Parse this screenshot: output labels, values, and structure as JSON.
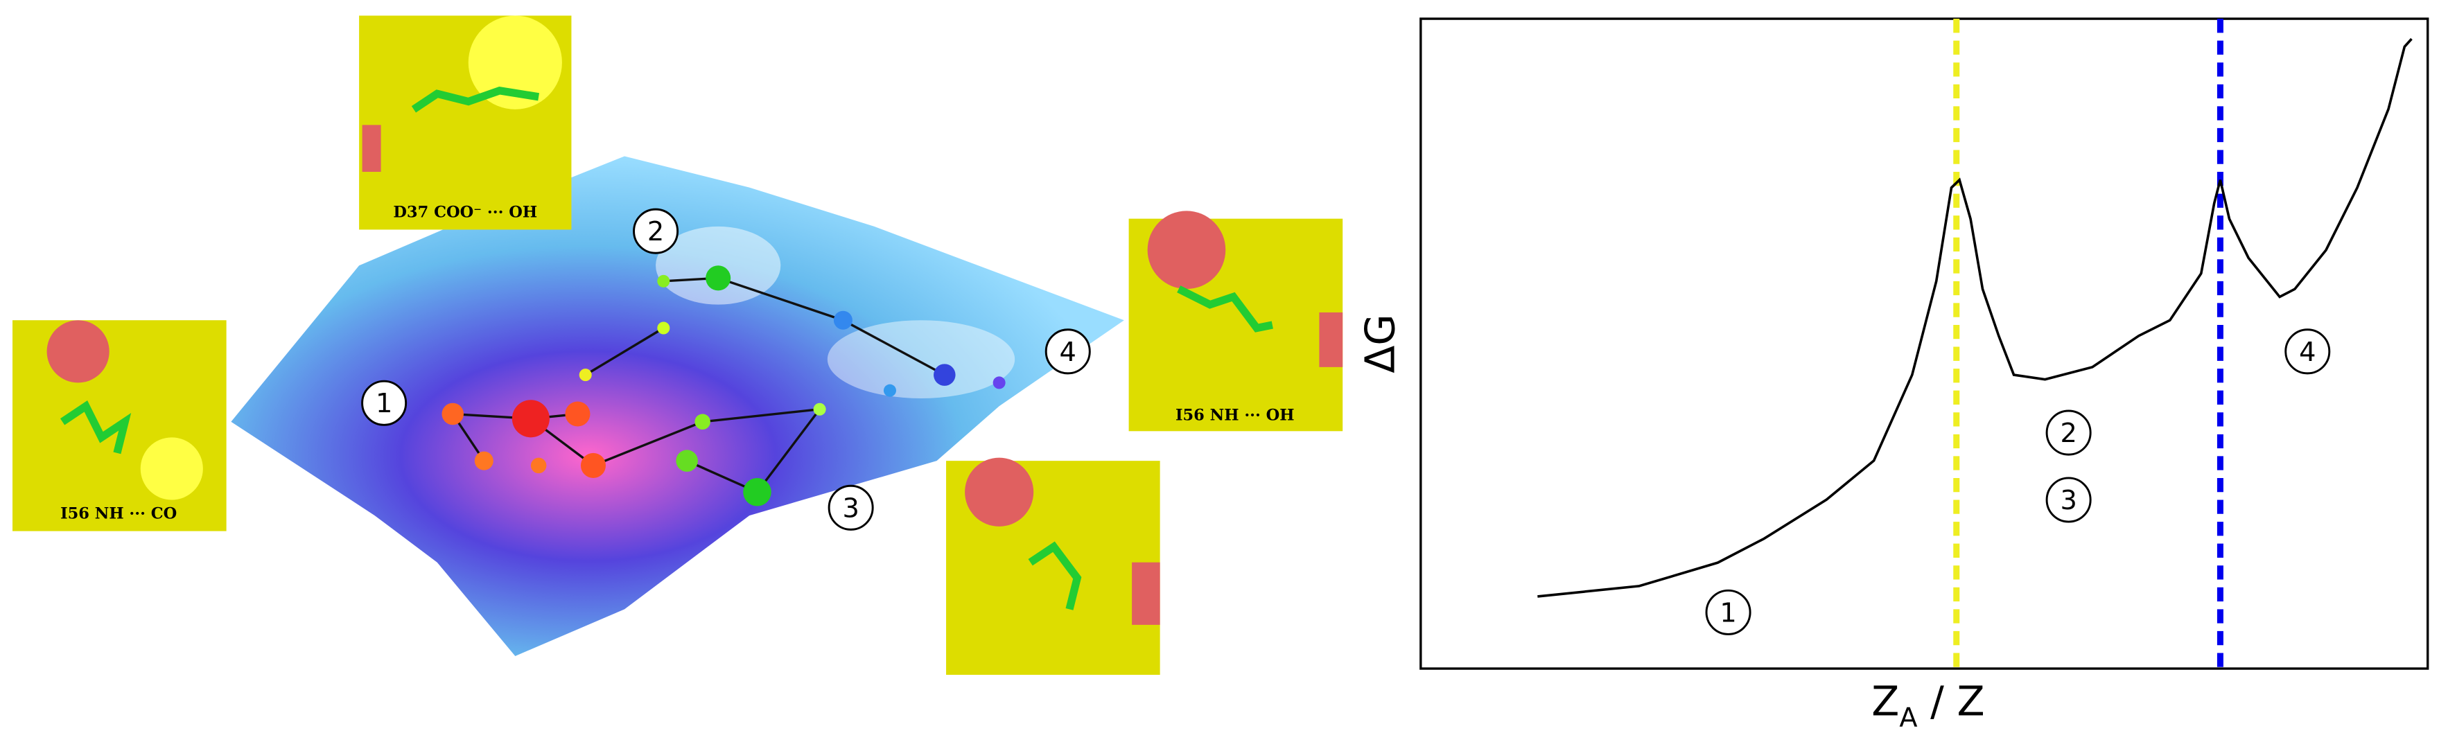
{
  "landscape": {
    "states": [
      "1",
      "2",
      "3",
      "4"
    ],
    "insets": [
      "D37 COO⁻ ··· OH",
      "I56 NH ··· OH",
      "I56 NH ··· CO"
    ]
  },
  "chart_data": {
    "type": "line",
    "x_label": {
      "base": "Z",
      "subscript": "A",
      "rest": " / Z"
    },
    "y_label": "ΔG",
    "xlim": [
      0,
      1
    ],
    "ylim": [
      0,
      1
    ],
    "series": [
      {
        "color": "#000000",
        "x": [
          0.116,
          0.217,
          0.295,
          0.341,
          0.403,
          0.45,
          0.488,
          0.512,
          0.527,
          0.535,
          0.546,
          0.558,
          0.574,
          0.589,
          0.62,
          0.667,
          0.713,
          0.744,
          0.775,
          0.788,
          0.794,
          0.803,
          0.822,
          0.853,
          0.868,
          0.899,
          0.93,
          0.961,
          0.977,
          0.984
        ],
        "values": [
          0.111,
          0.127,
          0.163,
          0.2,
          0.26,
          0.32,
          0.452,
          0.596,
          0.74,
          0.752,
          0.692,
          0.584,
          0.512,
          0.452,
          0.445,
          0.464,
          0.512,
          0.536,
          0.608,
          0.716,
          0.752,
          0.692,
          0.632,
          0.572,
          0.584,
          0.644,
          0.74,
          0.861,
          0.957,
          0.969
        ]
      }
    ],
    "vlines": [
      {
        "x": 0.532,
        "color": "#eeee22"
      },
      {
        "x": 0.794,
        "color": "#0000ee"
      }
    ],
    "annotations": [
      "1",
      "2",
      "3",
      "4"
    ]
  }
}
